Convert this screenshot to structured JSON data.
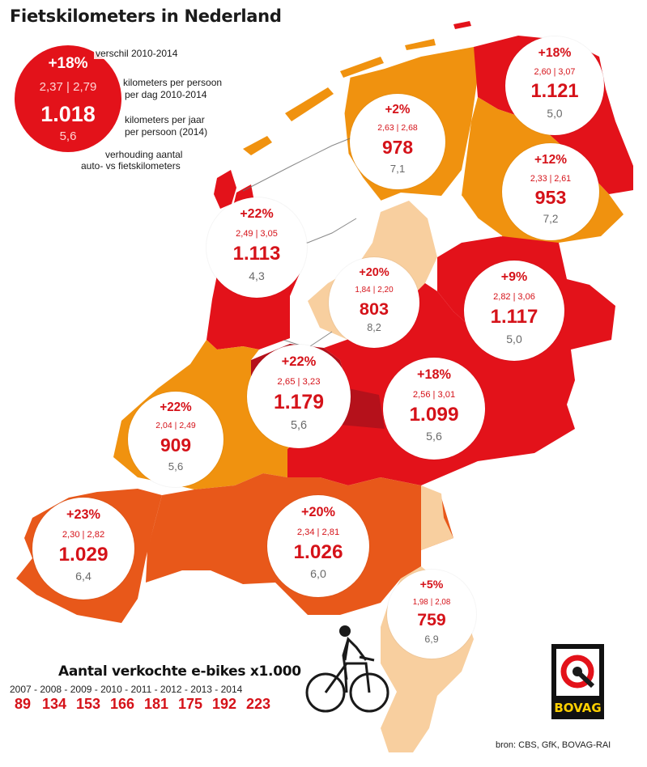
{
  "title": "Fietskilometers in Nederland",
  "legend": {
    "example": {
      "pct": "+18%",
      "km2010": "2,37",
      "km2014": "2,79",
      "yearly": "1.018",
      "ratio": "5,6"
    },
    "note_pct": "verschil 2010-2014",
    "note_daily_1": "kilometers per persoon",
    "note_daily_2": "per dag 2010-2014",
    "note_yearly_1": "kilometers per jaar",
    "note_yearly_2": "per persoon (2014)",
    "note_ratio_1": "verhouding aantal",
    "note_ratio_2": "auto- vs fietskilometers"
  },
  "colors": {
    "dark_red": "#b5111b",
    "red": "#e3121a",
    "orange_red": "#e8581a",
    "orange": "#f0920f",
    "light_peach": "#f8cf9f",
    "bubble_text": "#d51219"
  },
  "chart_data": [
    {
      "type": "table",
      "columns": [
        "verschil 2010-2014",
        "km per persoon per dag 2010",
        "km per persoon per dag 2014",
        "km per jaar per persoon (2014)",
        "verhouding auto- vs fietskilometers"
      ],
      "rows": [
        {
          "pct": "+18%",
          "km2010": "2,60",
          "km2014": "3,07",
          "yearly": "1.121",
          "ratio": "5,0"
        },
        {
          "pct": "+2%",
          "km2010": "2,63",
          "km2014": "2,68",
          "yearly": "978",
          "ratio": "7,1"
        },
        {
          "pct": "+12%",
          "km2010": "2,33",
          "km2014": "2,61",
          "yearly": "953",
          "ratio": "7,2"
        },
        {
          "pct": "+22%",
          "km2010": "2,49",
          "km2014": "3,05",
          "yearly": "1.113",
          "ratio": "4,3"
        },
        {
          "pct": "+20%",
          "km2010": "1,84",
          "km2014": "2,20",
          "yearly": "803",
          "ratio": "8,2"
        },
        {
          "pct": "+9%",
          "km2010": "2,82",
          "km2014": "3,06",
          "yearly": "1.117",
          "ratio": "5,0"
        },
        {
          "pct": "+22%",
          "km2010": "2,65",
          "km2014": "3,23",
          "yearly": "1.179",
          "ratio": "5,6"
        },
        {
          "pct": "+18%",
          "km2010": "2,56",
          "km2014": "3,01",
          "yearly": "1.099",
          "ratio": "5,6"
        },
        {
          "pct": "+22%",
          "km2010": "2,04",
          "km2014": "2,49",
          "yearly": "909",
          "ratio": "5,6"
        },
        {
          "pct": "+23%",
          "km2010": "2,30",
          "km2014": "2,82",
          "yearly": "1.029",
          "ratio": "6,4"
        },
        {
          "pct": "+20%",
          "km2010": "2,34",
          "km2014": "2,81",
          "yearly": "1.026",
          "ratio": "6,0"
        },
        {
          "pct": "+5%",
          "km2010": "1,98",
          "km2014": "2,08",
          "yearly": "759",
          "ratio": "6,9"
        }
      ]
    },
    {
      "type": "table",
      "title": "Aantal verkochte e-bikes x1.000",
      "categories": [
        "2007",
        "2008",
        "2009",
        "2010",
        "2011",
        "2012",
        "2013",
        "2014"
      ],
      "values": [
        89,
        134,
        153,
        166,
        181,
        175,
        192,
        223
      ]
    }
  ],
  "source": "bron: CBS, GfK, BOVAG-RAI",
  "logo_text": "BOVAG"
}
